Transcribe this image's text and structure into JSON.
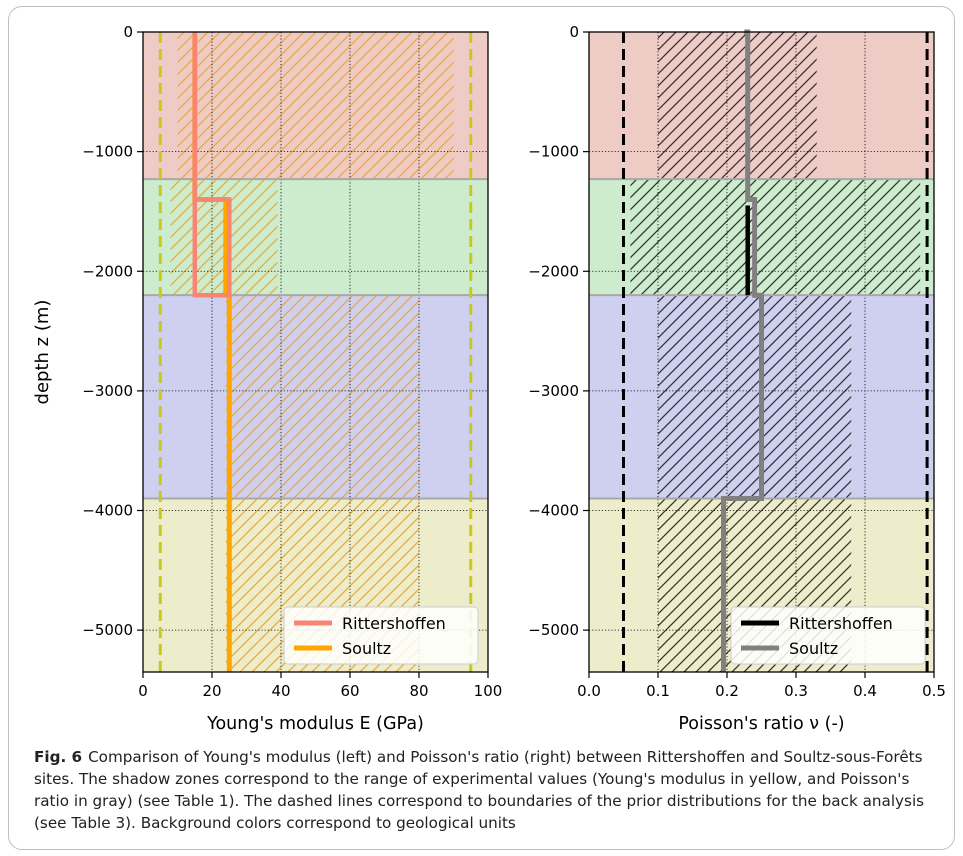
{
  "caption": {
    "label": "Fig. 6",
    "text": "Comparison of Young's modulus (left) and Poisson's ratio (right) between Rittershoffen and Soultz-sous-Forêts sites. The shadow zones correspond to the range of experimental values (Young's modulus in yellow, and Poisson's ratio in gray) (see Table 1). The dashed lines correspond to boundaries of the prior distributions for the back analysis (see Table 3). Background colors correspond to geological units"
  },
  "colors": {
    "layers": [
      "#efcbc6",
      "#cdeccd",
      "#cfcfef",
      "#ededcb"
    ],
    "layer_boundary": "#a8a8a8",
    "youngs_hatch": "#f0a830",
    "poisson_hatch": "#333333",
    "youngs_prior": "#c8c81e",
    "poisson_prior": "#000000",
    "youngs_rittershoffen": "#f88474",
    "youngs_soultz": "#ffa500",
    "poisson_rittershoffen": "#000000",
    "poisson_soultz": "#808080"
  },
  "chart_data": [
    {
      "type": "line",
      "xlabel": "Young's modulus E (GPa)",
      "ylabel": "depth z (m)",
      "xlim": [
        0,
        100
      ],
      "ylim": [
        -5350,
        0
      ],
      "xticks": [
        0,
        20,
        40,
        60,
        80,
        100
      ],
      "xtick_labels": [
        "0",
        "20",
        "40",
        "60",
        "80",
        "100"
      ],
      "yticks": [
        0,
        -1000,
        -2000,
        -3000,
        -4000,
        -5000
      ],
      "ytick_labels": [
        "0",
        "−1000",
        "−2000",
        "−3000",
        "−4000",
        "−5000"
      ],
      "grid": true,
      "legend_position": "bottom-right",
      "layer_boundaries": [
        0,
        -1230,
        -2200,
        -3900,
        -5350
      ],
      "prior_bounds": [
        5,
        95
      ],
      "experimental_ranges": [
        {
          "z_top": 0,
          "z_bottom": -1230,
          "x_min": 10,
          "x_max": 90
        },
        {
          "z_top": -1230,
          "z_bottom": -2200,
          "x_min": 8,
          "x_max": 39
        },
        {
          "z_top": -2200,
          "z_bottom": -3900,
          "x_min": 24,
          "x_max": 80
        },
        {
          "z_top": -3900,
          "z_bottom": -5350,
          "x_min": 24,
          "x_max": 80
        }
      ],
      "series": [
        {
          "name": "Rittershoffen",
          "x": [
            15,
            15,
            25,
            25,
            15,
            15
          ],
          "y": [
            0,
            -1400,
            -1400,
            -2200,
            -2200,
            -1230
          ]
        },
        {
          "name": "Soultz",
          "x": [
            15,
            15,
            24,
            24,
            25,
            25
          ],
          "y": [
            0,
            -1400,
            -1400,
            -2200,
            -2200,
            -5350
          ]
        }
      ]
    },
    {
      "type": "line",
      "xlabel": "Poisson's ratio ν (-)",
      "ylabel": "",
      "xlim": [
        0,
        0.5
      ],
      "ylim": [
        -5350,
        0
      ],
      "xticks": [
        0,
        0.1,
        0.2,
        0.3,
        0.4,
        0.5
      ],
      "xtick_labels": [
        "0.0",
        "0.1",
        "0.2",
        "0.3",
        "0.4",
        "0.5"
      ],
      "yticks": [
        0,
        -1000,
        -2000,
        -3000,
        -4000,
        -5000
      ],
      "ytick_labels": [
        "0",
        "−1000",
        "−2000",
        "−3000",
        "−4000",
        "−5000"
      ],
      "grid": true,
      "legend_position": "bottom-right",
      "layer_boundaries": [
        0,
        -1230,
        -2200,
        -3900,
        -5350
      ],
      "prior_bounds": [
        0.05,
        0.49
      ],
      "experimental_ranges": [
        {
          "z_top": 0,
          "z_bottom": -1230,
          "x_min": 0.1,
          "x_max": 0.33
        },
        {
          "z_top": -1230,
          "z_bottom": -2200,
          "x_min": 0.06,
          "x_max": 0.48
        },
        {
          "z_top": -2200,
          "z_bottom": -3900,
          "x_min": 0.1,
          "x_max": 0.38
        },
        {
          "z_top": -3900,
          "z_bottom": -5350,
          "x_min": 0.1,
          "x_max": 0.38
        }
      ],
      "series": [
        {
          "name": "Rittershoffen",
          "x": [
            0.23,
            0.23
          ],
          "y": [
            -1450,
            -2200
          ]
        },
        {
          "name": "Soultz",
          "x": [
            0.225,
            0.23,
            0.23,
            0.24,
            0.24,
            0.25,
            0.25,
            0.195,
            0.195
          ],
          "y": [
            0,
            0,
            -1400,
            -1400,
            -2200,
            -2200,
            -3900,
            -3900,
            -5350
          ]
        }
      ]
    }
  ]
}
